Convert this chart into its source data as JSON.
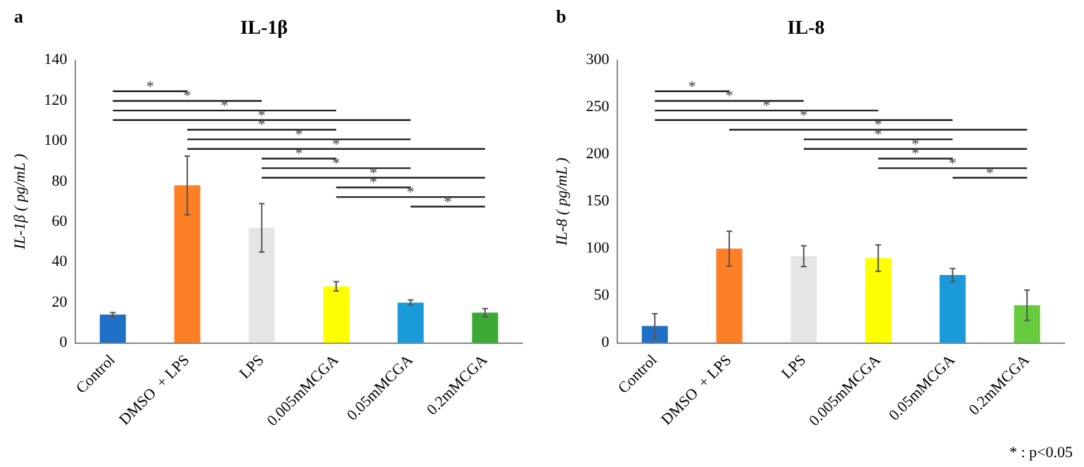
{
  "chart_data": [
    {
      "type": "bar",
      "title": "IL-1β",
      "ylabel": "IL-1β ( pg/mL )",
      "categories": [
        "Control",
        "DMSO  + LPS",
        "LPS",
        "0.005mMCGA",
        "0.05mMCGA",
        "0.2mMCGA"
      ],
      "values": [
        14,
        78,
        57,
        28,
        20,
        15
      ],
      "errors": [
        1,
        14.5,
        12,
        2.3,
        1.3,
        2
      ],
      "colors": [
        "#1f6fc6",
        "#fd7f25",
        "#e5e5e5",
        "#ffff00",
        "#1a9ad8",
        "#3aaa35"
      ],
      "ylim": [
        0,
        140
      ],
      "yticks": [
        0,
        20,
        40,
        60,
        80,
        100,
        120,
        140
      ],
      "grid": false,
      "legend": false,
      "annotations": [
        "a",
        "*",
        "*",
        "*",
        "*",
        "*",
        "*",
        "*",
        "*",
        "*",
        "*",
        "*",
        "*",
        "*"
      ]
    },
    {
      "type": "bar",
      "title": "IL-8",
      "ylabel": "IL-8 ( pg/mL )",
      "categories": [
        "Control",
        "DMSO  + LPS",
        "LPS",
        "0.005mMCGA",
        "0.05mMCGA",
        "0.2mMCGA"
      ],
      "values": [
        18,
        100,
        92,
        90,
        72,
        40
      ],
      "errors": [
        13,
        18.5,
        11,
        14,
        7,
        16
      ],
      "colors": [
        "#1f6fc6",
        "#fd7f25",
        "#e5e5e5",
        "#ffff00",
        "#1a9ad8",
        "#66cc3d"
      ],
      "ylim": [
        0,
        300
      ],
      "yticks": [
        0,
        50,
        100,
        150,
        200,
        250,
        300
      ],
      "grid": false,
      "legend": false,
      "annotations": [
        "b",
        "*",
        "*",
        "*",
        "*",
        "*",
        "*",
        "*",
        "*",
        "*",
        "*",
        "* : p<0.05"
      ]
    }
  ]
}
